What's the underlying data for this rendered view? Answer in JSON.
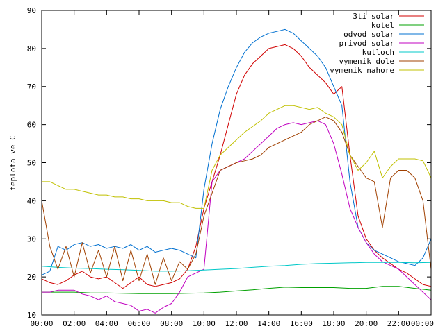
{
  "chart_data": {
    "type": "line",
    "title": "",
    "xlabel": "",
    "ylabel": "teplota ve C",
    "ylim": [
      10,
      90
    ],
    "xlim": [
      "00:00",
      "24:00"
    ],
    "x_tick_labels": [
      "00:00",
      "02:00",
      "04:00",
      "06:00",
      "08:00",
      "10:00",
      "12:00",
      "14:00",
      "16:00",
      "18:00",
      "20:00",
      "22:00",
      "00:00"
    ],
    "y_ticks": [
      10,
      20,
      30,
      40,
      50,
      60,
      70,
      80,
      90
    ],
    "grid": false,
    "legend_position": "top-right",
    "series": [
      {
        "name": "3ti solar",
        "color": "#d00000",
        "x": [
          0,
          0.5,
          1,
          1.5,
          2,
          2.5,
          3,
          3.5,
          4,
          4.5,
          5,
          5.5,
          6,
          6.5,
          7,
          7.5,
          8,
          8.5,
          9,
          9.5,
          10,
          10.5,
          11,
          11.5,
          12,
          12.5,
          13,
          13.5,
          14,
          14.5,
          15,
          15.5,
          16,
          16.5,
          17,
          17.5,
          18,
          18.5,
          19,
          19.5,
          20,
          20.5,
          21,
          21.5,
          22,
          22.5,
          23,
          23.5,
          24
        ],
        "values": [
          19.5,
          18.5,
          18.0,
          19.0,
          20.5,
          21.5,
          20.0,
          19.5,
          20.0,
          18.5,
          17.0,
          18.5,
          20.0,
          18.0,
          17.5,
          18.0,
          18.5,
          19.5,
          22.0,
          28.0,
          38.0,
          45.0,
          52.0,
          60.0,
          68.0,
          73.0,
          76.0,
          78.0,
          80.0,
          80.5,
          81.0,
          80.0,
          78.0,
          75.0,
          73.0,
          71.0,
          68.0,
          70.0,
          52.0,
          36.0,
          30.0,
          27.0,
          25.0,
          23.5,
          22.0,
          21.0,
          19.5,
          18.0,
          17.5
        ]
      },
      {
        "name": "kotel",
        "color": "#00a000",
        "x": [
          0,
          1,
          2,
          3,
          4,
          5,
          6,
          7,
          8,
          9,
          10,
          11,
          12,
          13,
          14,
          15,
          16,
          17,
          18,
          19,
          20,
          21,
          22,
          23,
          24
        ],
        "values": [
          16.0,
          16.0,
          16.0,
          15.8,
          15.8,
          15.7,
          15.6,
          15.6,
          15.6,
          15.7,
          15.8,
          16.0,
          16.3,
          16.6,
          17.0,
          17.3,
          17.2,
          17.2,
          17.2,
          17.0,
          17.0,
          17.5,
          17.5,
          17.0,
          16.5
        ]
      },
      {
        "name": "odvod solar",
        "color": "#0070d0",
        "x": [
          0,
          0.5,
          1,
          1.5,
          2,
          2.5,
          3,
          3.5,
          4,
          4.5,
          5,
          5.5,
          6,
          6.5,
          7,
          7.5,
          8,
          8.5,
          9,
          9.5,
          10,
          10.5,
          11,
          11.5,
          12,
          12.5,
          13,
          13.5,
          14,
          14.5,
          15,
          15.5,
          16,
          16.5,
          17,
          17.5,
          18,
          18.5,
          19,
          19.5,
          20,
          20.5,
          21,
          21.5,
          22,
          22.5,
          23,
          23.5,
          24
        ],
        "values": [
          20.5,
          21.5,
          28.0,
          27.0,
          28.5,
          29.0,
          28.0,
          28.5,
          27.5,
          28.0,
          27.5,
          28.5,
          27.0,
          28.0,
          26.5,
          27.0,
          27.5,
          27.0,
          26.0,
          25.0,
          43.0,
          55.0,
          64.0,
          70.0,
          75.0,
          79.0,
          81.5,
          83.0,
          84.0,
          84.5,
          85.0,
          84.0,
          82.0,
          80.0,
          78.0,
          75.0,
          70.0,
          65.0,
          45.0,
          33.0,
          29.0,
          27.0,
          26.0,
          25.0,
          24.0,
          23.5,
          23.0,
          25.0,
          30.0
        ]
      },
      {
        "name": "privod solar",
        "color": "#c000c0",
        "x": [
          0,
          0.5,
          1,
          1.5,
          2,
          2.5,
          3,
          3.5,
          4,
          4.5,
          5,
          5.5,
          6,
          6.5,
          7,
          7.5,
          8,
          8.5,
          9,
          9.5,
          10,
          10.5,
          11,
          11.5,
          12,
          12.5,
          13,
          13.5,
          14,
          14.5,
          15,
          15.5,
          16,
          16.5,
          17,
          17.5,
          18,
          18.5,
          19,
          19.5,
          20,
          20.5,
          21,
          21.5,
          22,
          22.5,
          23,
          23.5,
          24
        ],
        "values": [
          16.0,
          16.0,
          16.5,
          16.5,
          16.5,
          15.5,
          15.0,
          14.0,
          15.0,
          13.5,
          13.0,
          12.5,
          11.0,
          11.5,
          10.5,
          12.0,
          13.0,
          16.0,
          20.0,
          21.0,
          22.0,
          45.0,
          48.0,
          49.0,
          50.0,
          51.0,
          53.0,
          55.0,
          57.0,
          59.0,
          60.0,
          60.5,
          60.0,
          60.5,
          61.0,
          60.0,
          55.0,
          47.0,
          38.0,
          33.0,
          29.0,
          26.0,
          24.0,
          23.0,
          22.0,
          20.0,
          18.0,
          16.0,
          14.0
        ]
      },
      {
        "name": "kutloch",
        "color": "#00c8c8",
        "x": [
          0,
          1,
          2,
          3,
          4,
          5,
          6,
          7,
          8,
          9,
          10,
          11,
          12,
          13,
          14,
          15,
          16,
          17,
          18,
          19,
          20,
          21,
          22,
          23,
          24
        ],
        "values": [
          22.8,
          22.5,
          22.3,
          22.2,
          22.0,
          21.9,
          21.7,
          21.5,
          21.5,
          21.6,
          21.8,
          22.0,
          22.2,
          22.5,
          22.8,
          23.0,
          23.3,
          23.5,
          23.6,
          23.7,
          23.8,
          23.8,
          23.8,
          23.7,
          23.8
        ]
      },
      {
        "name": "vymenik dole",
        "color": "#a04000",
        "x": [
          0,
          0.5,
          1,
          1.5,
          2,
          2.5,
          3,
          3.5,
          4,
          4.5,
          5,
          5.5,
          6,
          6.5,
          7,
          7.5,
          8,
          8.5,
          9,
          9.5,
          10,
          10.5,
          11,
          11.5,
          12,
          12.5,
          13,
          13.5,
          14,
          14.5,
          15,
          15.5,
          16,
          16.5,
          17,
          17.5,
          18,
          18.5,
          19,
          19.5,
          20,
          20.5,
          21,
          21.5,
          22,
          22.5,
          23,
          23.5,
          24
        ],
        "values": [
          40.0,
          28.0,
          22.0,
          28.0,
          20.0,
          29.0,
          21.0,
          27.0,
          20.0,
          28.0,
          19.0,
          27.0,
          19.0,
          26.0,
          18.0,
          25.0,
          19.0,
          24.0,
          22.0,
          26.0,
          36.0,
          42.0,
          48.0,
          49.0,
          50.0,
          50.5,
          51.0,
          52.0,
          54.0,
          55.0,
          56.0,
          57.0,
          58.0,
          60.0,
          61.0,
          62.0,
          61.0,
          58.0,
          52.0,
          49.0,
          46.0,
          45.0,
          33.0,
          46.0,
          48.0,
          48.0,
          46.0,
          40.0,
          22.0
        ]
      },
      {
        "name": "vymenik nahore",
        "color": "#c0c000",
        "x": [
          0,
          0.5,
          1,
          1.5,
          2,
          2.5,
          3,
          3.5,
          4,
          4.5,
          5,
          5.5,
          6,
          6.5,
          7,
          7.5,
          8,
          8.5,
          9,
          9.5,
          10,
          10.5,
          11,
          11.5,
          12,
          12.5,
          13,
          13.5,
          14,
          14.5,
          15,
          15.5,
          16,
          16.5,
          17,
          17.5,
          18,
          18.5,
          19,
          19.5,
          20,
          20.5,
          21,
          21.5,
          22,
          22.5,
          23,
          23.5,
          24
        ],
        "values": [
          45.0,
          45.0,
          44.0,
          43.0,
          43.0,
          42.5,
          42.0,
          41.5,
          41.5,
          41.0,
          41.0,
          40.5,
          40.5,
          40.0,
          40.0,
          40.0,
          39.5,
          39.5,
          38.5,
          38.0,
          38.0,
          48.0,
          52.0,
          54.0,
          56.0,
          58.0,
          59.5,
          61.0,
          63.0,
          64.0,
          65.0,
          65.0,
          64.5,
          64.0,
          64.5,
          63.0,
          62.0,
          60.0,
          52.0,
          48.0,
          50.0,
          53.0,
          46.0,
          49.0,
          51.0,
          51.0,
          51.0,
          50.5,
          46.0
        ]
      }
    ]
  }
}
